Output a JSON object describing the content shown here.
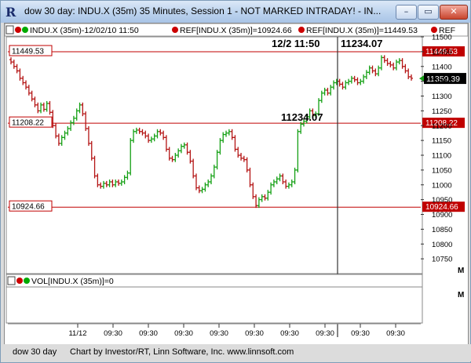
{
  "window": {
    "title": "dow 30 day: INDU.X (35m) 35 Minutes, Session 1 - NOT MARKED INTRADAY! - IN...",
    "minimize": "–",
    "maximize": "▭",
    "close": "✕"
  },
  "header": {
    "symbol_label": "INDU.X (35m)-12/02/10 11:50",
    "ref1_label": "REF[INDU.X (35m)]=10924.66",
    "ref2_label": "REF[INDU.X (35m)]=11449.53",
    "ref3_label": "REF"
  },
  "volume_header": {
    "label": "VOL[INDU.X (35m)]=0",
    "m_button": "M"
  },
  "price_pane": {
    "m_button": "M"
  },
  "footer": {
    "layout_name": "dow 30 day",
    "credit": "Chart by Investor/RT, Linn Software, Inc. www.linnsoft.com"
  },
  "colors": {
    "up": "#14a014",
    "down": "#b41414",
    "ref_line": "#c00000",
    "last_price_bg": "#000000"
  },
  "chart_data": {
    "type": "bar",
    "ylim": [
      10700,
      11500
    ],
    "y_ticks": [
      10750,
      10800,
      10850,
      10900,
      10950,
      11000,
      11050,
      11100,
      11150,
      11200,
      11250,
      11300,
      11350,
      11400,
      11450,
      11500
    ],
    "x_tick_labels": [
      "11/12",
      "09:30",
      "09:30",
      "09:30",
      "09:30",
      "09:30",
      "09:30",
      "09:30",
      "09:30",
      "09:30"
    ],
    "reference_lines": [
      {
        "value": 11449.53,
        "label": "11449.53"
      },
      {
        "value": 11208.22,
        "label": "11208.22"
      },
      {
        "value": 10924.66,
        "label": "10924.66"
      }
    ],
    "last_price": {
      "value": 11359.39,
      "label": "11359.39"
    },
    "crosshair": {
      "time_label": "12/2 11:50",
      "value_label": "11234.07",
      "bar_label": "11234.07"
    },
    "closes": [
      11415,
      11400,
      11385,
      11360,
      11345,
      11330,
      11310,
      11290,
      11270,
      11250,
      11270,
      11255,
      11275,
      11245,
      11200,
      11165,
      11140,
      11160,
      11175,
      11190,
      11210,
      11225,
      11250,
      11270,
      11240,
      11190,
      11140,
      11090,
      11030,
      11000,
      10995,
      11005,
      11000,
      11010,
      11000,
      11010,
      11005,
      11010,
      11025,
      11040,
      11150,
      11180,
      11185,
      11180,
      11175,
      11165,
      11150,
      11155,
      11165,
      11180,
      11175,
      11160,
      11120,
      11090,
      11085,
      11100,
      11115,
      11130,
      11135,
      11110,
      11080,
      11030,
      10990,
      10980,
      10985,
      11000,
      11010,
      11030,
      11060,
      11110,
      11150,
      11170,
      11175,
      11180,
      11160,
      11120,
      11100,
      11090,
      11085,
      11050,
      11000,
      10960,
      10930,
      10950,
      10960,
      10955,
      10975,
      11000,
      11010,
      11020,
      11030,
      11010,
      10995,
      11000,
      11010,
      11050,
      11180,
      11205,
      11215,
      11230,
      11250,
      11234,
      11240,
      11285,
      11310,
      11320,
      11310,
      11330,
      11345,
      11350,
      11340,
      11330,
      11345,
      11350,
      11360,
      11355,
      11345,
      11350,
      11365,
      11380,
      11395,
      11385,
      11375,
      11395,
      11430,
      11420,
      11410,
      11405,
      11395,
      11415,
      11420,
      11400,
      11385,
      11365,
      11360
    ]
  }
}
